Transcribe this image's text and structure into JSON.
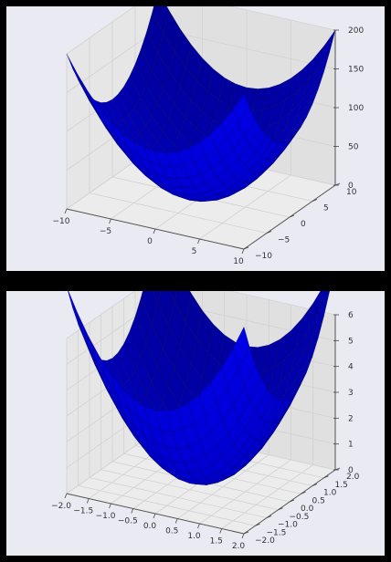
{
  "chart_data": [
    {
      "type": "surface",
      "function": "z = x^2 + y^2",
      "x_range": [
        -10,
        10
      ],
      "y_range": [
        -10,
        10
      ],
      "zlim": [
        0,
        200
      ],
      "x_ticks": [
        "−10",
        "−5",
        "0",
        "5",
        "10"
      ],
      "y_ticks": [
        "−10",
        "−5",
        "0",
        "5",
        "10"
      ],
      "z_ticks": [
        "0",
        "50",
        "100",
        "150",
        "200"
      ],
      "surface_color": "#0000ff",
      "grid": true,
      "background": "#eaeaf2"
    },
    {
      "type": "surface",
      "function": "z = x^2 + y^2",
      "x_range": [
        -2,
        2
      ],
      "y_range": [
        -2,
        2
      ],
      "zlim": [
        0,
        6
      ],
      "x_ticks": [
        "−2.0",
        "−1.5",
        "−1.0",
        "−0.5",
        "0.0",
        "0.5",
        "1.0",
        "1.5",
        "2.0"
      ],
      "y_ticks": [
        "−2.0",
        "−1.5",
        "−1.0",
        "−0.5",
        "0.0",
        "0.5",
        "1.0",
        "1.5",
        "2.0"
      ],
      "z_ticks": [
        "0",
        "1",
        "2",
        "3",
        "4",
        "5",
        "6"
      ],
      "surface_color": "#0000ff",
      "grid": true,
      "background": "#eaeaf2"
    }
  ]
}
